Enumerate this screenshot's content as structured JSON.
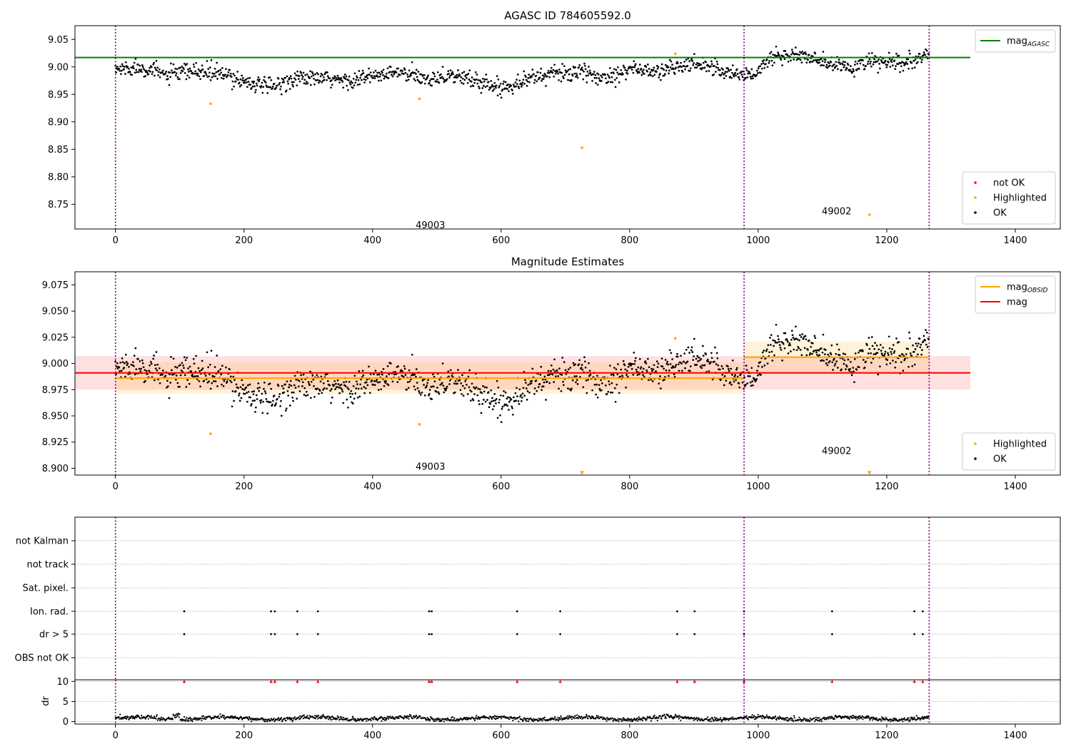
{
  "chart_data": [
    {
      "type": "scatter",
      "title": "AGASC ID 784605592.0",
      "xlim": [
        -63,
        1470
      ],
      "ylim": [
        8.705,
        9.075
      ],
      "xticks": [
        "0",
        "200",
        "400",
        "600",
        "800",
        "1000",
        "1200",
        "1400"
      ],
      "xtick_values": [
        0,
        200,
        400,
        600,
        800,
        1000,
        1200,
        1400
      ],
      "yticks": [
        "9.05",
        "9.00",
        "8.95",
        "8.90",
        "8.85",
        "8.80",
        "8.75"
      ],
      "ytick_values": [
        9.05,
        9.0,
        8.95,
        8.9,
        8.85,
        8.8,
        8.75
      ],
      "legend_upper": {
        "placement": "upper-right",
        "entries": [
          {
            "label": "mag",
            "sub": "AGASC",
            "color": "#008000",
            "style": "line"
          }
        ]
      },
      "legend_lower": {
        "placement": "lower-right",
        "entries": [
          {
            "label": "not OK",
            "color": "#ff0000",
            "style": "dot"
          },
          {
            "label": "Highlighted",
            "color": "#ffa500",
            "style": "dot"
          },
          {
            "label": "OK",
            "color": "#000000",
            "style": "dot"
          }
        ]
      },
      "hline": {
        "label": "mag_AGASC",
        "y": 9.017,
        "x_range": [
          -63,
          1330
        ],
        "color": "#008000"
      },
      "obsid_boundaries": [
        0,
        978,
        1266
      ],
      "obsid_labels": [
        {
          "text": "49003",
          "x": 490,
          "y": 8.713
        },
        {
          "text": "49002",
          "x": 1122,
          "y": 8.738
        }
      ],
      "highlighted_points": [
        {
          "x": 148,
          "y": 8.933
        },
        {
          "x": 473,
          "y": 8.942
        },
        {
          "x": 726,
          "y": 8.853
        },
        {
          "x": 871,
          "y": 9.024
        },
        {
          "x": 1173,
          "y": 8.731
        }
      ],
      "ok_trend": [
        {
          "x": 0,
          "y": 8.995
        },
        {
          "x": 40,
          "y": 9.0
        },
        {
          "x": 80,
          "y": 8.985
        },
        {
          "x": 120,
          "y": 8.992
        },
        {
          "x": 160,
          "y": 8.988
        },
        {
          "x": 200,
          "y": 8.975
        },
        {
          "x": 240,
          "y": 8.962
        },
        {
          "x": 280,
          "y": 8.98
        },
        {
          "x": 320,
          "y": 8.978
        },
        {
          "x": 360,
          "y": 8.975
        },
        {
          "x": 400,
          "y": 8.982
        },
        {
          "x": 440,
          "y": 8.99
        },
        {
          "x": 480,
          "y": 8.978
        },
        {
          "x": 520,
          "y": 8.985
        },
        {
          "x": 560,
          "y": 8.975
        },
        {
          "x": 600,
          "y": 8.962
        },
        {
          "x": 640,
          "y": 8.978
        },
        {
          "x": 680,
          "y": 8.988
        },
        {
          "x": 720,
          "y": 8.99
        },
        {
          "x": 760,
          "y": 8.98
        },
        {
          "x": 800,
          "y": 8.998
        },
        {
          "x": 840,
          "y": 8.99
        },
        {
          "x": 880,
          "y": 9.002
        },
        {
          "x": 920,
          "y": 9.005
        },
        {
          "x": 950,
          "y": 8.99
        },
        {
          "x": 978,
          "y": 8.985
        },
        {
          "x": 1000,
          "y": 8.99
        },
        {
          "x": 1020,
          "y": 9.018
        },
        {
          "x": 1060,
          "y": 9.022
        },
        {
          "x": 1100,
          "y": 9.008
        },
        {
          "x": 1140,
          "y": 8.998
        },
        {
          "x": 1180,
          "y": 9.01
        },
        {
          "x": 1220,
          "y": 9.005
        },
        {
          "x": 1250,
          "y": 9.012
        },
        {
          "x": 1266,
          "y": 9.025
        }
      ]
    },
    {
      "type": "scatter",
      "title": "Magnitude Estimates",
      "xlim": [
        -63,
        1470
      ],
      "ylim": [
        8.8935,
        9.0875
      ],
      "xticks": [
        "0",
        "200",
        "400",
        "600",
        "800",
        "1000",
        "1200",
        "1400"
      ],
      "xtick_values": [
        0,
        200,
        400,
        600,
        800,
        1000,
        1200,
        1400
      ],
      "yticks": [
        "9.075",
        "9.050",
        "9.025",
        "9.000",
        "8.975",
        "8.950",
        "8.925",
        "8.900"
      ],
      "ytick_values": [
        9.075,
        9.05,
        9.025,
        9.0,
        8.975,
        8.95,
        8.925,
        8.9
      ],
      "legend_upper": {
        "placement": "upper-right",
        "entries": [
          {
            "label": "mag",
            "sub": "OBSID",
            "color": "#ffa500",
            "style": "line"
          },
          {
            "label": "mag",
            "sub": "",
            "color": "#ff0000",
            "style": "line"
          }
        ]
      },
      "legend_lower": {
        "placement": "lower-right",
        "entries": [
          {
            "label": "Highlighted",
            "color": "#ffa500",
            "style": "dot"
          },
          {
            "label": "OK",
            "color": "#000000",
            "style": "dot"
          }
        ]
      },
      "mag_line": {
        "y": 8.991,
        "band": [
          8.975,
          9.007
        ],
        "x_range": [
          -63,
          1330
        ],
        "color": "#ff0000"
      },
      "obsid_lines": [
        {
          "x_range": [
            0,
            978
          ],
          "y": 8.986,
          "band": [
            8.971,
            9.001
          ],
          "color": "#ffa500"
        },
        {
          "x_range": [
            978,
            1266
          ],
          "y": 9.006,
          "band": [
            8.99,
            9.021
          ],
          "color": "#ffa500"
        }
      ],
      "obsid_boundaries": [
        0,
        978,
        1266
      ],
      "obsid_labels": [
        {
          "text": "49003",
          "x": 490,
          "y": 8.902
        },
        {
          "text": "49002",
          "x": 1122,
          "y": 8.917
        }
      ],
      "highlighted_points": [
        {
          "x": 148,
          "y": 8.933
        },
        {
          "x": 473,
          "y": 8.942
        },
        {
          "x": 871,
          "y": 9.024
        }
      ],
      "offscale_markers": [
        {
          "x": 726,
          "y": 8.896
        },
        {
          "x": 1173,
          "y": 8.896
        }
      ],
      "ok_trend": [
        {
          "x": 0,
          "y": 8.995
        },
        {
          "x": 40,
          "y": 9.0
        },
        {
          "x": 80,
          "y": 8.985
        },
        {
          "x": 120,
          "y": 8.992
        },
        {
          "x": 160,
          "y": 8.988
        },
        {
          "x": 200,
          "y": 8.975
        },
        {
          "x": 240,
          "y": 8.962
        },
        {
          "x": 280,
          "y": 8.98
        },
        {
          "x": 320,
          "y": 8.978
        },
        {
          "x": 360,
          "y": 8.975
        },
        {
          "x": 400,
          "y": 8.982
        },
        {
          "x": 440,
          "y": 8.99
        },
        {
          "x": 480,
          "y": 8.978
        },
        {
          "x": 520,
          "y": 8.985
        },
        {
          "x": 560,
          "y": 8.975
        },
        {
          "x": 600,
          "y": 8.962
        },
        {
          "x": 640,
          "y": 8.978
        },
        {
          "x": 680,
          "y": 8.988
        },
        {
          "x": 720,
          "y": 8.99
        },
        {
          "x": 760,
          "y": 8.98
        },
        {
          "x": 800,
          "y": 8.998
        },
        {
          "x": 840,
          "y": 8.99
        },
        {
          "x": 880,
          "y": 9.002
        },
        {
          "x": 920,
          "y": 9.005
        },
        {
          "x": 950,
          "y": 8.99
        },
        {
          "x": 978,
          "y": 8.985
        },
        {
          "x": 1000,
          "y": 8.99
        },
        {
          "x": 1020,
          "y": 9.018
        },
        {
          "x": 1060,
          "y": 9.022
        },
        {
          "x": 1100,
          "y": 9.008
        },
        {
          "x": 1140,
          "y": 8.998
        },
        {
          "x": 1180,
          "y": 9.01
        },
        {
          "x": 1220,
          "y": 9.005
        },
        {
          "x": 1250,
          "y": 9.012
        },
        {
          "x": 1266,
          "y": 9.025
        }
      ]
    },
    {
      "type": "scatter",
      "title": "",
      "xlim": [
        -63,
        1470
      ],
      "xticks": [
        "0",
        "200",
        "400",
        "600",
        "800",
        "1000",
        "1200",
        "1400"
      ],
      "xtick_values": [
        0,
        200,
        400,
        600,
        800,
        1000,
        1200,
        1400
      ],
      "flag_rows": [
        "not Kalman",
        "not track",
        "Sat. pixel.",
        "Ion. rad.",
        "dr > 5",
        "OBS not OK"
      ],
      "flag_events": {
        "Ion. rad.": [
          107,
          242,
          248,
          283,
          315,
          488,
          492,
          625,
          692,
          874,
          901,
          978,
          1115,
          1243,
          1256
        ],
        "dr > 5": [
          107,
          242,
          248,
          283,
          315,
          488,
          492,
          625,
          692,
          874,
          901,
          978,
          1115,
          1243,
          1256
        ]
      },
      "dr": {
        "ylabel": "dr",
        "yticks": [
          "10",
          "5",
          "0"
        ],
        "ytick_values": [
          10,
          5,
          0
        ],
        "ylim": [
          -0.6,
          10.4
        ],
        "clipped_at": 10,
        "clipped_x": [
          107,
          242,
          248,
          283,
          315,
          488,
          492,
          625,
          692,
          874,
          901,
          978,
          1115,
          1243,
          1256
        ],
        "baseline_mean": 0.8
      },
      "obsid_boundaries": [
        0,
        978,
        1266
      ]
    }
  ]
}
